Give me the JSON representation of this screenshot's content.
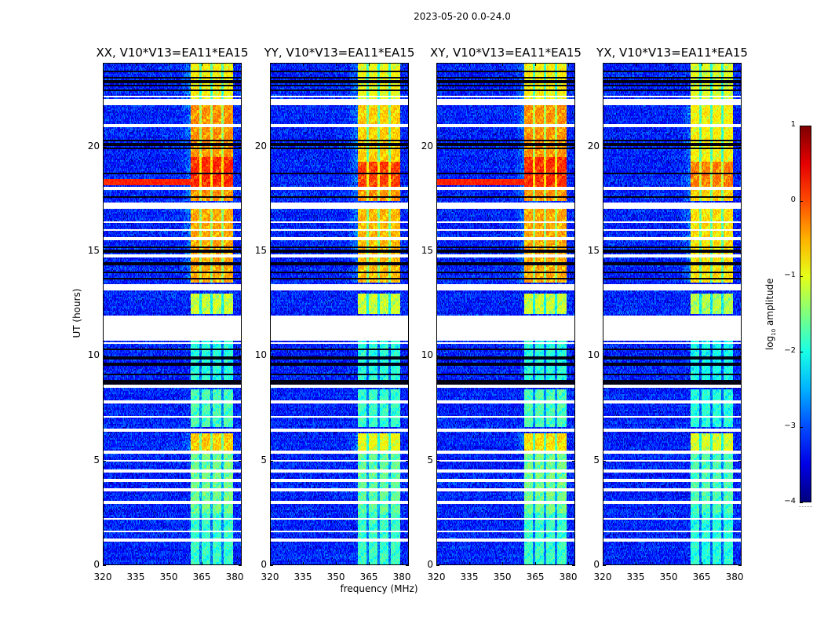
{
  "suptitle": "2023-05-20 0.0-24.0",
  "chart_data": {
    "type": "heatmap",
    "xlabel": "frequency (MHz)",
    "ylabel": "UT (hours)",
    "xlim": [
      320,
      383.2
    ],
    "ylim": [
      0,
      24
    ],
    "xticks": [
      "320",
      "335",
      "350",
      "365",
      "380"
    ],
    "yticks": [
      "0",
      "5",
      "10",
      "15",
      "20"
    ],
    "colorbar": {
      "label": "log10 amplitude",
      "label_main": "log",
      "label_sub": "10",
      "label_rest": " amplitude",
      "range": [
        -4,
        1
      ],
      "ticks": [
        "1",
        "0",
        "−1",
        "−2",
        "−3",
        "−4"
      ],
      "colormap": "jet"
    },
    "background_level": -3.2,
    "band_mhz": [
      360,
      379.3
    ],
    "band_notches_mhz": [
      364.5,
      369.5,
      374.5
    ],
    "gaps_hours": [
      [
        22.0,
        22.25
      ],
      [
        17.05,
        17.35
      ],
      [
        15.55,
        15.7
      ],
      [
        14.7,
        14.85
      ],
      [
        13.1,
        13.45
      ],
      [
        10.75,
        11.95
      ],
      [
        8.45,
        8.65
      ],
      [
        6.35,
        6.55
      ],
      [
        3.95,
        4.1
      ]
    ],
    "thin_white_hours": [
      22.4,
      21.0,
      18.0,
      16.4,
      16.0,
      10.6,
      7.8,
      7.1,
      5.4,
      5.0,
      4.5,
      3.6,
      3.0,
      2.2,
      1.6,
      1.2
    ],
    "dark_line_hours": [
      23.6,
      23.3,
      23.1,
      22.9,
      22.7,
      20.3,
      20.1,
      19.9,
      18.7,
      17.6,
      15.2,
      15.0,
      14.4,
      14.0,
      13.7,
      10.3,
      9.9,
      9.6,
      9.1,
      8.8,
      8.7
    ],
    "panels": [
      {
        "title": "XX, V10*V13=EA11*EA15",
        "offset": 0,
        "streak_hours": [
          18.15,
          18.45
        ],
        "levels": [
          [
            0,
            2.5,
            -1.8
          ],
          [
            2.5,
            5.4,
            -1.5
          ],
          [
            5.4,
            6.3,
            -0.6
          ],
          [
            6.6,
            8.4,
            -1.7
          ],
          [
            8.7,
            10.7,
            -1.9
          ],
          [
            12,
            13,
            -1.1
          ],
          [
            13.5,
            17,
            -0.4
          ],
          [
            17.4,
            18.1,
            -0.3
          ],
          [
            18.1,
            19.5,
            0.2
          ],
          [
            19.5,
            22,
            -0.3
          ],
          [
            22.3,
            24,
            -0.8
          ]
        ]
      },
      {
        "title": "YY, V10*V13=EA11*EA15",
        "offset": -0.2,
        "streak_hours": null,
        "levels": [
          [
            0,
            2.5,
            -1.8
          ],
          [
            2.5,
            5.4,
            -1.6
          ],
          [
            5.4,
            6.3,
            -0.9
          ],
          [
            6.6,
            8.4,
            -1.8
          ],
          [
            8.7,
            10.7,
            -1.9
          ],
          [
            12,
            13,
            -1.1
          ],
          [
            13.5,
            17,
            -0.5
          ],
          [
            17.4,
            18.1,
            -0.3
          ],
          [
            18.1,
            19.3,
            0.1
          ],
          [
            19.3,
            22,
            -0.6
          ],
          [
            22.3,
            24,
            -0.9
          ]
        ]
      },
      {
        "title": "XY, V10*V13=EA11*EA15",
        "offset": 0,
        "streak_hours": [
          18.15,
          18.45
        ],
        "levels": [
          [
            0,
            2.5,
            -1.8
          ],
          [
            2.5,
            5.4,
            -1.5
          ],
          [
            5.4,
            6.3,
            -0.7
          ],
          [
            6.6,
            8.4,
            -1.7
          ],
          [
            8.7,
            10.7,
            -1.9
          ],
          [
            12,
            13,
            -1.1
          ],
          [
            13.5,
            17,
            -0.4
          ],
          [
            17.4,
            18.1,
            -0.3
          ],
          [
            18.1,
            19.5,
            0.2
          ],
          [
            19.5,
            22,
            -0.3
          ],
          [
            22.3,
            24,
            -0.8
          ]
        ]
      },
      {
        "title": "YX, V10*V13=EA11*EA15",
        "offset": -0.3,
        "streak_hours": null,
        "levels": [
          [
            0,
            2.5,
            -1.9
          ],
          [
            2.5,
            5.4,
            -1.7
          ],
          [
            5.4,
            6.3,
            -1.0
          ],
          [
            6.6,
            8.4,
            -1.9
          ],
          [
            8.7,
            10.7,
            -2.0
          ],
          [
            12,
            13,
            -1.2
          ],
          [
            13.5,
            17,
            -0.7
          ],
          [
            17.4,
            18.1,
            -0.6
          ],
          [
            18.1,
            19.3,
            -0.2
          ],
          [
            19.3,
            22,
            -0.8
          ],
          [
            22.3,
            24,
            -1.0
          ]
        ]
      }
    ]
  }
}
